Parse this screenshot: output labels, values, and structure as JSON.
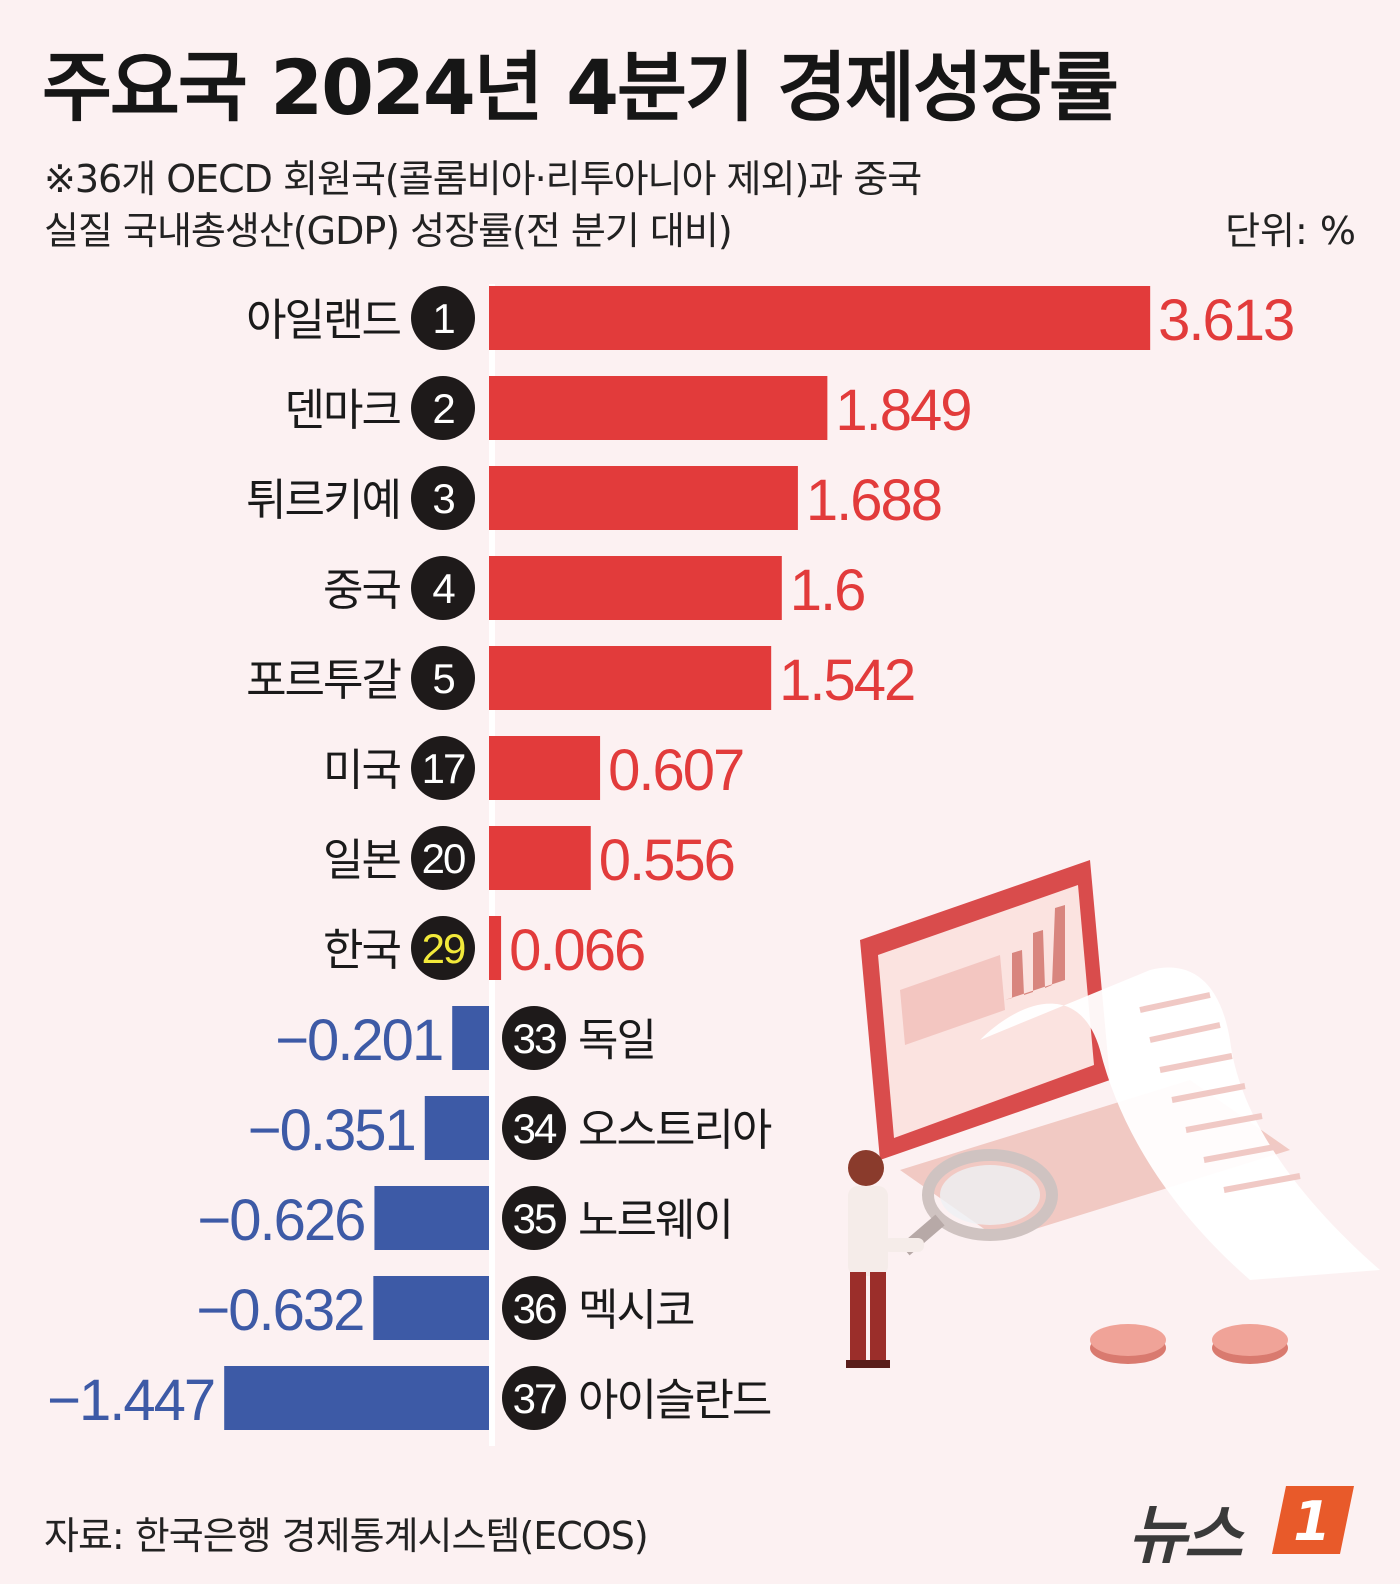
{
  "header": {
    "title": "주요국 2024년 4분기 경제성장률",
    "subtitle_line1": "※36개 OECD 회원국(콜롬비아·리투아니아 제외)과 중국",
    "subtitle_line2": "실질 국내총생산(GDP) 성장률(전 분기 대비)",
    "unit": "단위: %"
  },
  "footer": {
    "source": "자료: 한국은행 경제통계시스템(ECOS)",
    "logo_text": "뉴스",
    "logo_mark": "1"
  },
  "colors": {
    "positive": "#e23b3b",
    "negative": "#3d5aa6",
    "positive_label": "#e23b3b",
    "negative_label": "#3d5aa6",
    "badge": "#1e1a1a",
    "badge_text": "#ffffff",
    "badge_highlight_text": "#f2e93a",
    "axis": "#ffffff",
    "background": "#fcf1f2"
  },
  "chart_data": {
    "type": "bar",
    "orientation": "horizontal",
    "categories": [
      "아일랜드",
      "덴마크",
      "튀르키예",
      "중국",
      "포르투갈",
      "미국",
      "일본",
      "한국",
      "독일",
      "오스트리아",
      "노르웨이",
      "멕시코",
      "아이슬란드"
    ],
    "ranks": [
      "1",
      "2",
      "3",
      "4",
      "5",
      "17",
      "20",
      "29",
      "33",
      "34",
      "35",
      "36",
      "37"
    ],
    "values": [
      3.613,
      1.849,
      1.688,
      1.6,
      1.542,
      0.607,
      0.556,
      0.066,
      -0.201,
      -0.351,
      -0.626,
      -0.632,
      -1.447
    ],
    "value_labels": [
      "3.613",
      "1.849",
      "1.688",
      "1.6",
      "1.542",
      "0.607",
      "0.556",
      "0.066",
      "−0.201",
      "−0.351",
      "−0.626",
      "−0.632",
      "−1.447"
    ],
    "highlight": "한국",
    "xlim": [
      -1.447,
      3.613
    ]
  }
}
